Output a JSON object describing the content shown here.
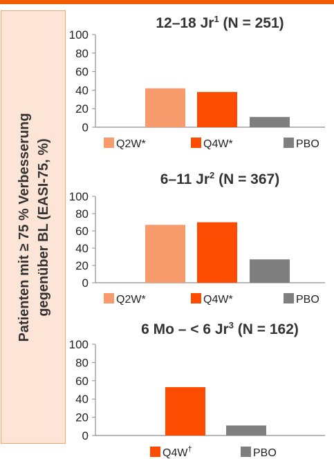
{
  "y_axis_label": {
    "line1": "Patienten mit ≥ 75 % Verbesserung",
    "line2": "gegenüber BL (EASI-75, %)"
  },
  "colors": {
    "Q2W": "#f79b6c",
    "Q4W": "#fc4c02",
    "PBO": "#7f7f7f",
    "accent": "#f25c05"
  },
  "chart_data": [
    {
      "type": "bar",
      "title": "12–18 Jr",
      "title_sup": "1",
      "title_n": "(N = 251)",
      "ylim": [
        0,
        100
      ],
      "yticks": [
        0,
        20,
        40,
        60,
        80,
        100
      ],
      "series": [
        {
          "name": "Q2W*",
          "key": "Q2W",
          "value": 42
        },
        {
          "name": "Q4W*",
          "key": "Q4W",
          "value": 38
        },
        {
          "name": "PBO",
          "key": "PBO",
          "value": 11
        }
      ]
    },
    {
      "type": "bar",
      "title": "6–11 Jr",
      "title_sup": "2",
      "title_n": "(N = 367)",
      "ylim": [
        0,
        100
      ],
      "yticks": [
        0,
        20,
        40,
        60,
        80,
        100
      ],
      "series": [
        {
          "name": "Q2W*",
          "key": "Q2W",
          "value": 67
        },
        {
          "name": "Q4W*",
          "key": "Q4W",
          "value": 70
        },
        {
          "name": "PBO",
          "key": "PBO",
          "value": 27
        }
      ]
    },
    {
      "type": "bar",
      "title": "6 Mo – < 6 Jr",
      "title_sup": "3",
      "title_n": "(N = 162)",
      "ylim": [
        0,
        100
      ],
      "yticks": [
        0,
        20,
        40,
        60,
        80,
        100
      ],
      "series": [
        {
          "name": "Q4W",
          "name_sup": "†",
          "key": "Q4W",
          "value": 53
        },
        {
          "name": "PBO",
          "key": "PBO",
          "value": 11
        }
      ]
    }
  ]
}
